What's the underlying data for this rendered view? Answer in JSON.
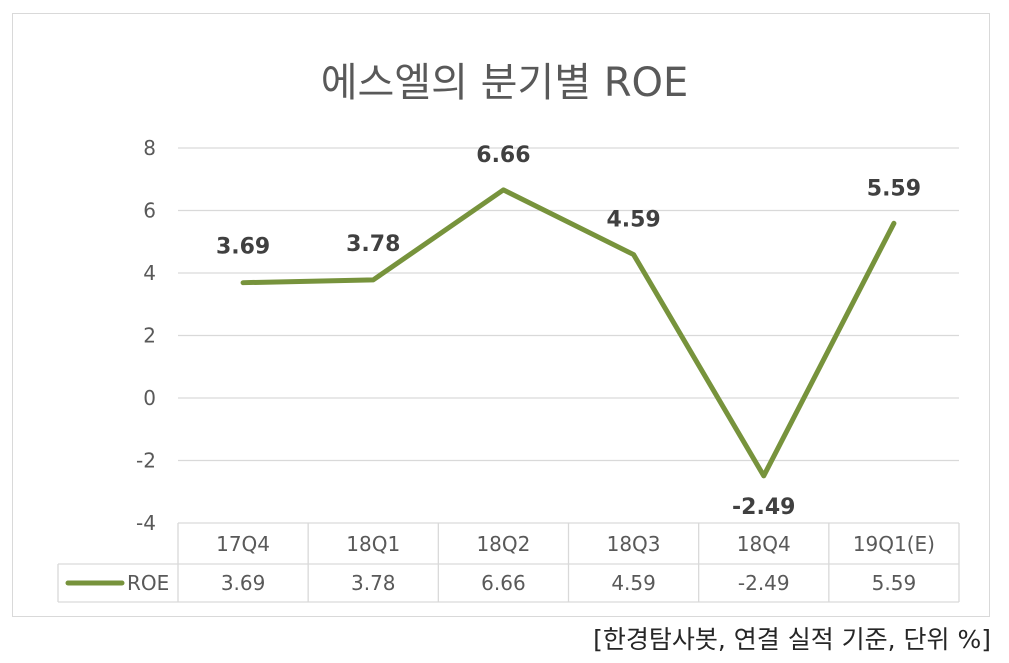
{
  "chart_data": {
    "type": "line",
    "title": "에스엘의 분기별 ROE",
    "categories": [
      "17Q4",
      "18Q1",
      "18Q2",
      "18Q3",
      "18Q4",
      "19Q1(E)"
    ],
    "series": [
      {
        "name": "ROE",
        "values": [
          3.69,
          3.78,
          6.66,
          4.59,
          -2.49,
          5.59
        ],
        "color": "#77933c"
      }
    ],
    "data_labels": [
      "3.69",
      "3.78",
      "6.66",
      "4.59",
      "-2.49",
      "5.59"
    ],
    "table_values": [
      "3.69",
      "3.78",
      "6.66",
      "4.59",
      "-2.49",
      "5.59"
    ],
    "ylim": [
      -4,
      8
    ],
    "yticks": [
      8,
      6,
      4,
      2,
      0,
      -2,
      -4
    ],
    "grid": true,
    "legend": "data-table"
  },
  "source_note": "[한경탐사봇, 연결 실적 기준, 단위 %]",
  "colors": {
    "line": "#77933c",
    "grid": "#d9d9d9",
    "text": "#595959",
    "label": "#404040"
  }
}
